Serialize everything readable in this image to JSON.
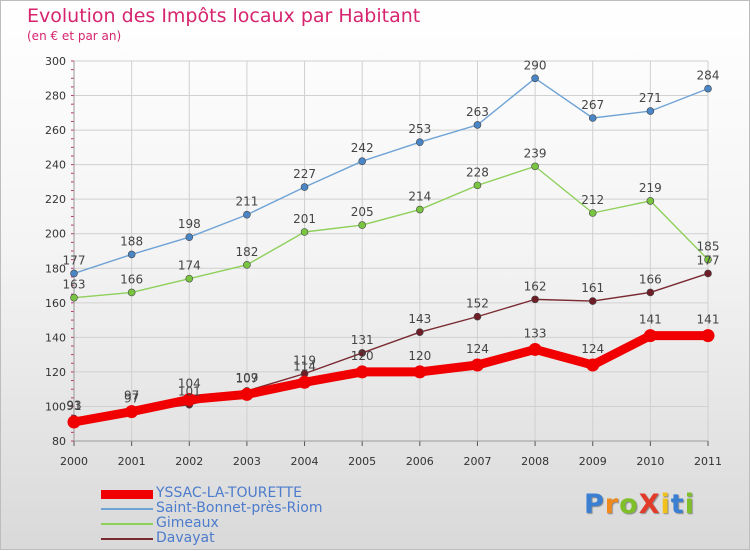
{
  "header": {
    "title": "Evolution des Impôts locaux par Habitant",
    "subtitle": "(en € et par an)"
  },
  "logo": {
    "text": "ProXiti",
    "colors": [
      "#3a7fd1",
      "#f08a1c",
      "#7fbf2a",
      "#e23b2a",
      "#f2c21b",
      "#3a7fd1",
      "#7fbf2a"
    ]
  },
  "chart_data": {
    "type": "line",
    "x": [
      "2000",
      "2001",
      "2002",
      "2003",
      "2004",
      "2005",
      "2006",
      "2007",
      "2008",
      "2009",
      "2010",
      "2011"
    ],
    "ylim": [
      80,
      300
    ],
    "yticks": [
      "80",
      "100",
      "120",
      "140",
      "160",
      "180",
      "200",
      "220",
      "240",
      "260",
      "280",
      "300"
    ],
    "grid": true,
    "legend_position": "bottom-left",
    "series": [
      {
        "name": "Saint-Bonnet-près-Riom",
        "color": "#6fa3d6",
        "marker_color": "#4a86c5",
        "values": [
          177,
          188,
          198,
          211,
          227,
          242,
          253,
          263,
          290,
          267,
          271,
          284
        ],
        "labels": [
          "177",
          "188",
          "198",
          "211",
          "227",
          "242",
          "253",
          "263",
          "290",
          "267",
          "271",
          "284"
        ]
      },
      {
        "name": "Gimeaux",
        "color": "#8ed05a",
        "marker_color": "#79c440",
        "values": [
          163,
          166,
          174,
          182,
          201,
          205,
          214,
          228,
          239,
          212,
          219,
          185
        ],
        "labels": [
          "163",
          "166",
          "174",
          "182",
          "201",
          "205",
          "214",
          "228",
          "239",
          "212",
          "219",
          "185"
        ]
      },
      {
        "name": "Davayat",
        "color": "#7a2b32",
        "marker_color": "#6e1e27",
        "values": [
          93,
          97,
          101,
          109,
          119,
          131,
          143,
          152,
          162,
          161,
          166,
          177
        ],
        "labels": [
          "93",
          "97",
          "101",
          "109",
          "119",
          "131",
          "143",
          "152",
          "162",
          "161",
          "166",
          "177"
        ]
      },
      {
        "name": "YSSAC-LA-TOURETTE",
        "color": "#f00000",
        "marker_color": "#f00000",
        "values": [
          91,
          97,
          104,
          107,
          114,
          120,
          120,
          124,
          133,
          124,
          141,
          141
        ],
        "labels": [
          "91",
          "97",
          "104",
          "107",
          "114",
          "120",
          "120",
          "124",
          "133",
          "124",
          "141",
          "141"
        ]
      }
    ],
    "legend": [
      {
        "name": "YSSAC-LA-TOURETTE",
        "color": "#f00000",
        "width": 9
      },
      {
        "name": "Saint-Bonnet-près-Riom",
        "color": "#6fa3d6",
        "width": 2
      },
      {
        "name": "Gimeaux",
        "color": "#8ed05a",
        "width": 2
      },
      {
        "name": "Davayat",
        "color": "#7a2b32",
        "width": 2
      }
    ]
  }
}
